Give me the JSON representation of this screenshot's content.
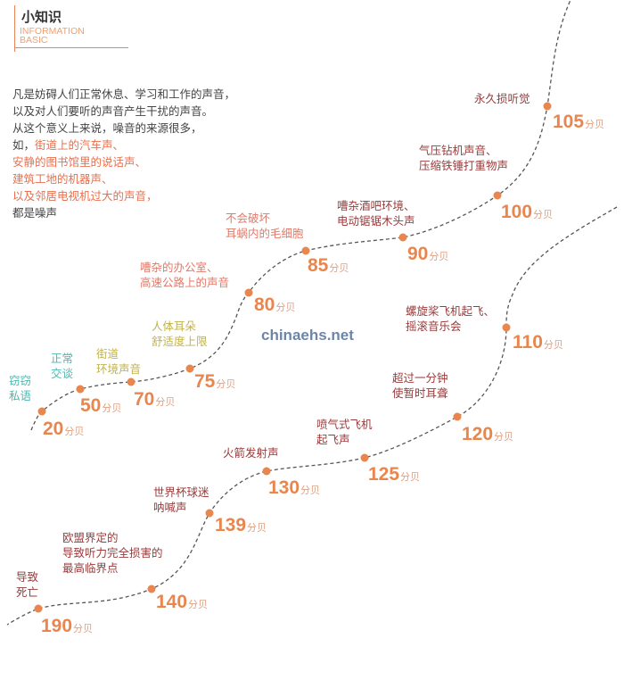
{
  "header": {
    "title": "小知识",
    "subtitle_line1": "INFORMATION",
    "subtitle_line2": "BASIC"
  },
  "intro": {
    "line1": "凡是妨碍人们正常休息、学习和工作的声音，",
    "line2": "以及对人们要听的声音产生干扰的声音。",
    "line3": "从这个意义上来说，噪音的来源很多，",
    "line4_prefix": "如，",
    "line4_highlight": "街道上的汽车声、",
    "line5": "安静的图书馆里的说话声、",
    "line6": "建筑工地的机器声、",
    "line7": "以及邻居电视机过大的声音，",
    "line8": "都是噪声"
  },
  "watermark": "chinaehs.net",
  "colors": {
    "accent": "#e8864e",
    "teal": "#4bb7b0",
    "olive": "#c2b24a",
    "salmon": "#e07a6a",
    "darkred": "#9a3a3a",
    "curve": "#555555",
    "watermark": "#6d86a8"
  },
  "unit": "分贝",
  "levels": [
    {
      "value": "20",
      "label_lines": [
        "窃窃",
        "私语"
      ],
      "color": "teal"
    },
    {
      "value": "50",
      "label_lines": [
        "正常",
        "交谈"
      ],
      "color": "teal"
    },
    {
      "value": "70",
      "label_lines": [
        "街道",
        "环境声音"
      ],
      "color": "olive"
    },
    {
      "value": "75",
      "label_lines": [
        "人体耳朵",
        "舒适度上限"
      ],
      "color": "olive"
    },
    {
      "value": "80",
      "label_lines": [
        "嘈杂的办公室、",
        "高速公路上的声音"
      ],
      "color": "salmon"
    },
    {
      "value": "85",
      "label_lines": [
        "不会破坏",
        "耳蜗内的毛细胞"
      ],
      "color": "salmon"
    },
    {
      "value": "90",
      "label_lines": [
        "嘈杂酒吧环境、",
        "电动锯锯木头声"
      ],
      "color": "darkred"
    },
    {
      "value": "100",
      "label_lines": [
        "气压钻机声音、",
        "压缩铁锤打重物声"
      ],
      "color": "darkred"
    },
    {
      "value": "105",
      "label_lines": [
        "永久损听觉"
      ],
      "color": "darkred"
    },
    {
      "value": "110",
      "label_lines": [
        "螺旋桨飞机起飞、",
        "摇滚音乐会"
      ],
      "color": "darkred"
    },
    {
      "value": "120",
      "label_lines": [
        "超过一分钟",
        "使暂时耳聋"
      ],
      "color": "darkred"
    },
    {
      "value": "125",
      "label_lines": [
        "喷气式飞机",
        "起飞声"
      ],
      "color": "darkred"
    },
    {
      "value": "130",
      "label_lines": [
        "火箭发射声"
      ],
      "color": "darkred"
    },
    {
      "value": "139",
      "label_lines": [
        "世界杯球迷",
        "呐喊声"
      ],
      "color": "darkred"
    },
    {
      "value": "140",
      "label_lines": [
        "欧盟界定的",
        "导致听力完全损害的",
        "最高临界点"
      ],
      "color": "darkred"
    },
    {
      "value": "190",
      "label_lines": [
        "导致",
        "死亡"
      ],
      "color": "darkred"
    }
  ]
}
